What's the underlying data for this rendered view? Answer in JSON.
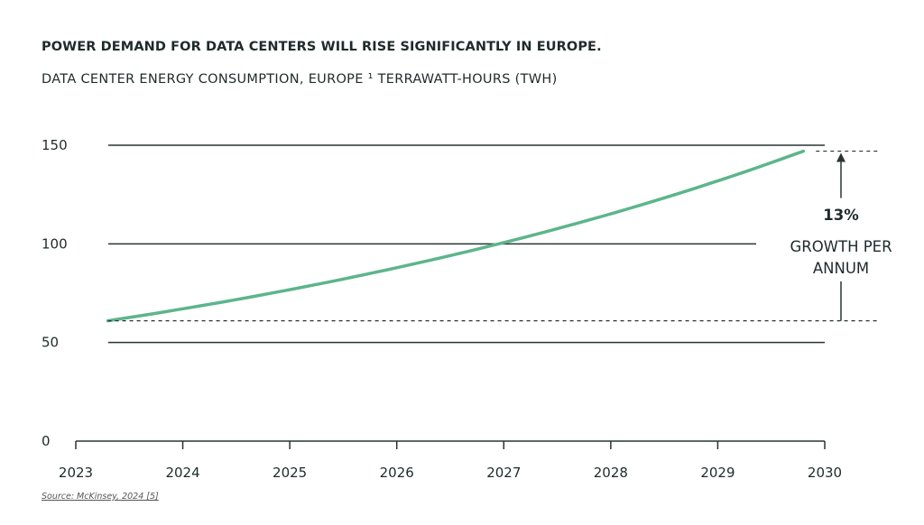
{
  "chart_data": {
    "type": "line",
    "title": "POWER DEMAND FOR DATA CENTERS WILL RISE SIGNIFICANTLY IN EUROPE.",
    "subtitle": "DATA CENTER ENERGY CONSUMPTION, EUROPE ¹ TERRAWATT-HOURS (TWH)",
    "xlabel": "",
    "ylabel": "",
    "x_ticks": [
      "2023",
      "2024",
      "2025",
      "2026",
      "2027",
      "2028",
      "2029",
      "2030"
    ],
    "y_ticks": [
      "0",
      "50",
      "100",
      "150"
    ],
    "xlim": [
      2023,
      2030
    ],
    "ylim": [
      0,
      150
    ],
    "grid": true,
    "series": [
      {
        "x": [
          2023.3,
          2029.8
        ],
        "y": [
          61,
          147
        ],
        "growth_rate": 0.13,
        "color": "#5db58b"
      }
    ],
    "annotation": {
      "value": "13%",
      "label_line1": "GROWTH PER",
      "label_line2": "ANNUM",
      "from": 61,
      "to": 147
    },
    "source": "Source: McKinsey, 2024 [5]"
  }
}
